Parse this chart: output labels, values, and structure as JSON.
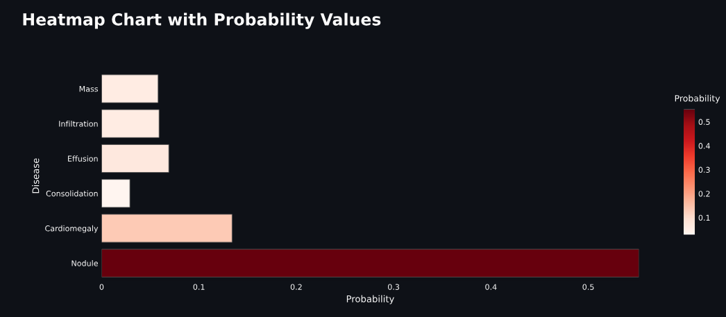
{
  "chart_data": {
    "type": "bar",
    "orientation": "horizontal",
    "title": "Heatmap Chart with Probability Values",
    "xlabel": "Probability",
    "ylabel": "Disease",
    "clabel": "Probability",
    "categories": [
      "Mass",
      "Infiltration",
      "Effusion",
      "Consolidation",
      "Cardiomegaly",
      "Nodule"
    ],
    "values": [
      0.058,
      0.059,
      0.069,
      0.029,
      0.134,
      0.552
    ],
    "xlim": [
      0,
      0.552
    ],
    "xticks": [
      0,
      0.1,
      0.2,
      0.3,
      0.4,
      0.5
    ],
    "clim": [
      0.029,
      0.552
    ],
    "cticks": [
      0.1,
      0.2,
      0.3,
      0.4,
      0.5
    ],
    "grid": false
  }
}
